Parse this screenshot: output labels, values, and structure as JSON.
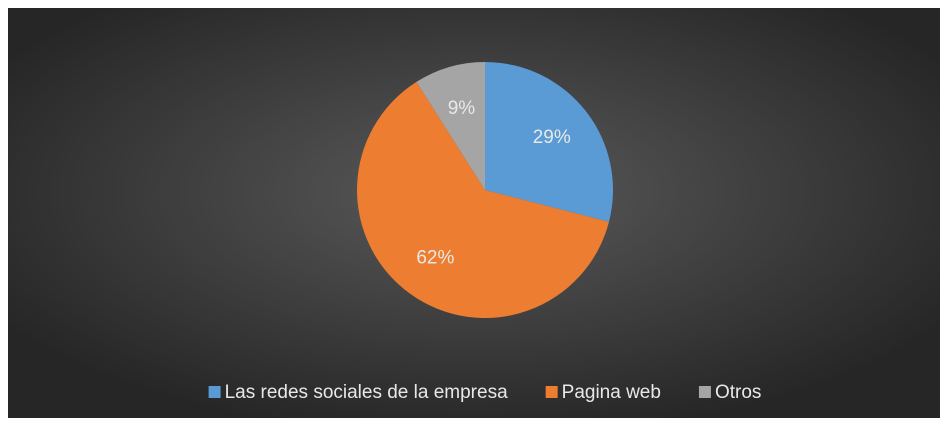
{
  "chart_data": {
    "type": "pie",
    "categories": [
      "Las redes sociales de la empresa",
      "Pagina web",
      "Otros"
    ],
    "values": [
      29,
      62,
      9
    ],
    "value_labels": [
      "29%",
      "62%",
      "9%"
    ],
    "colors": [
      "#5b9bd5",
      "#ed7d31",
      "#a5a5a5"
    ],
    "legend": "bottom"
  }
}
